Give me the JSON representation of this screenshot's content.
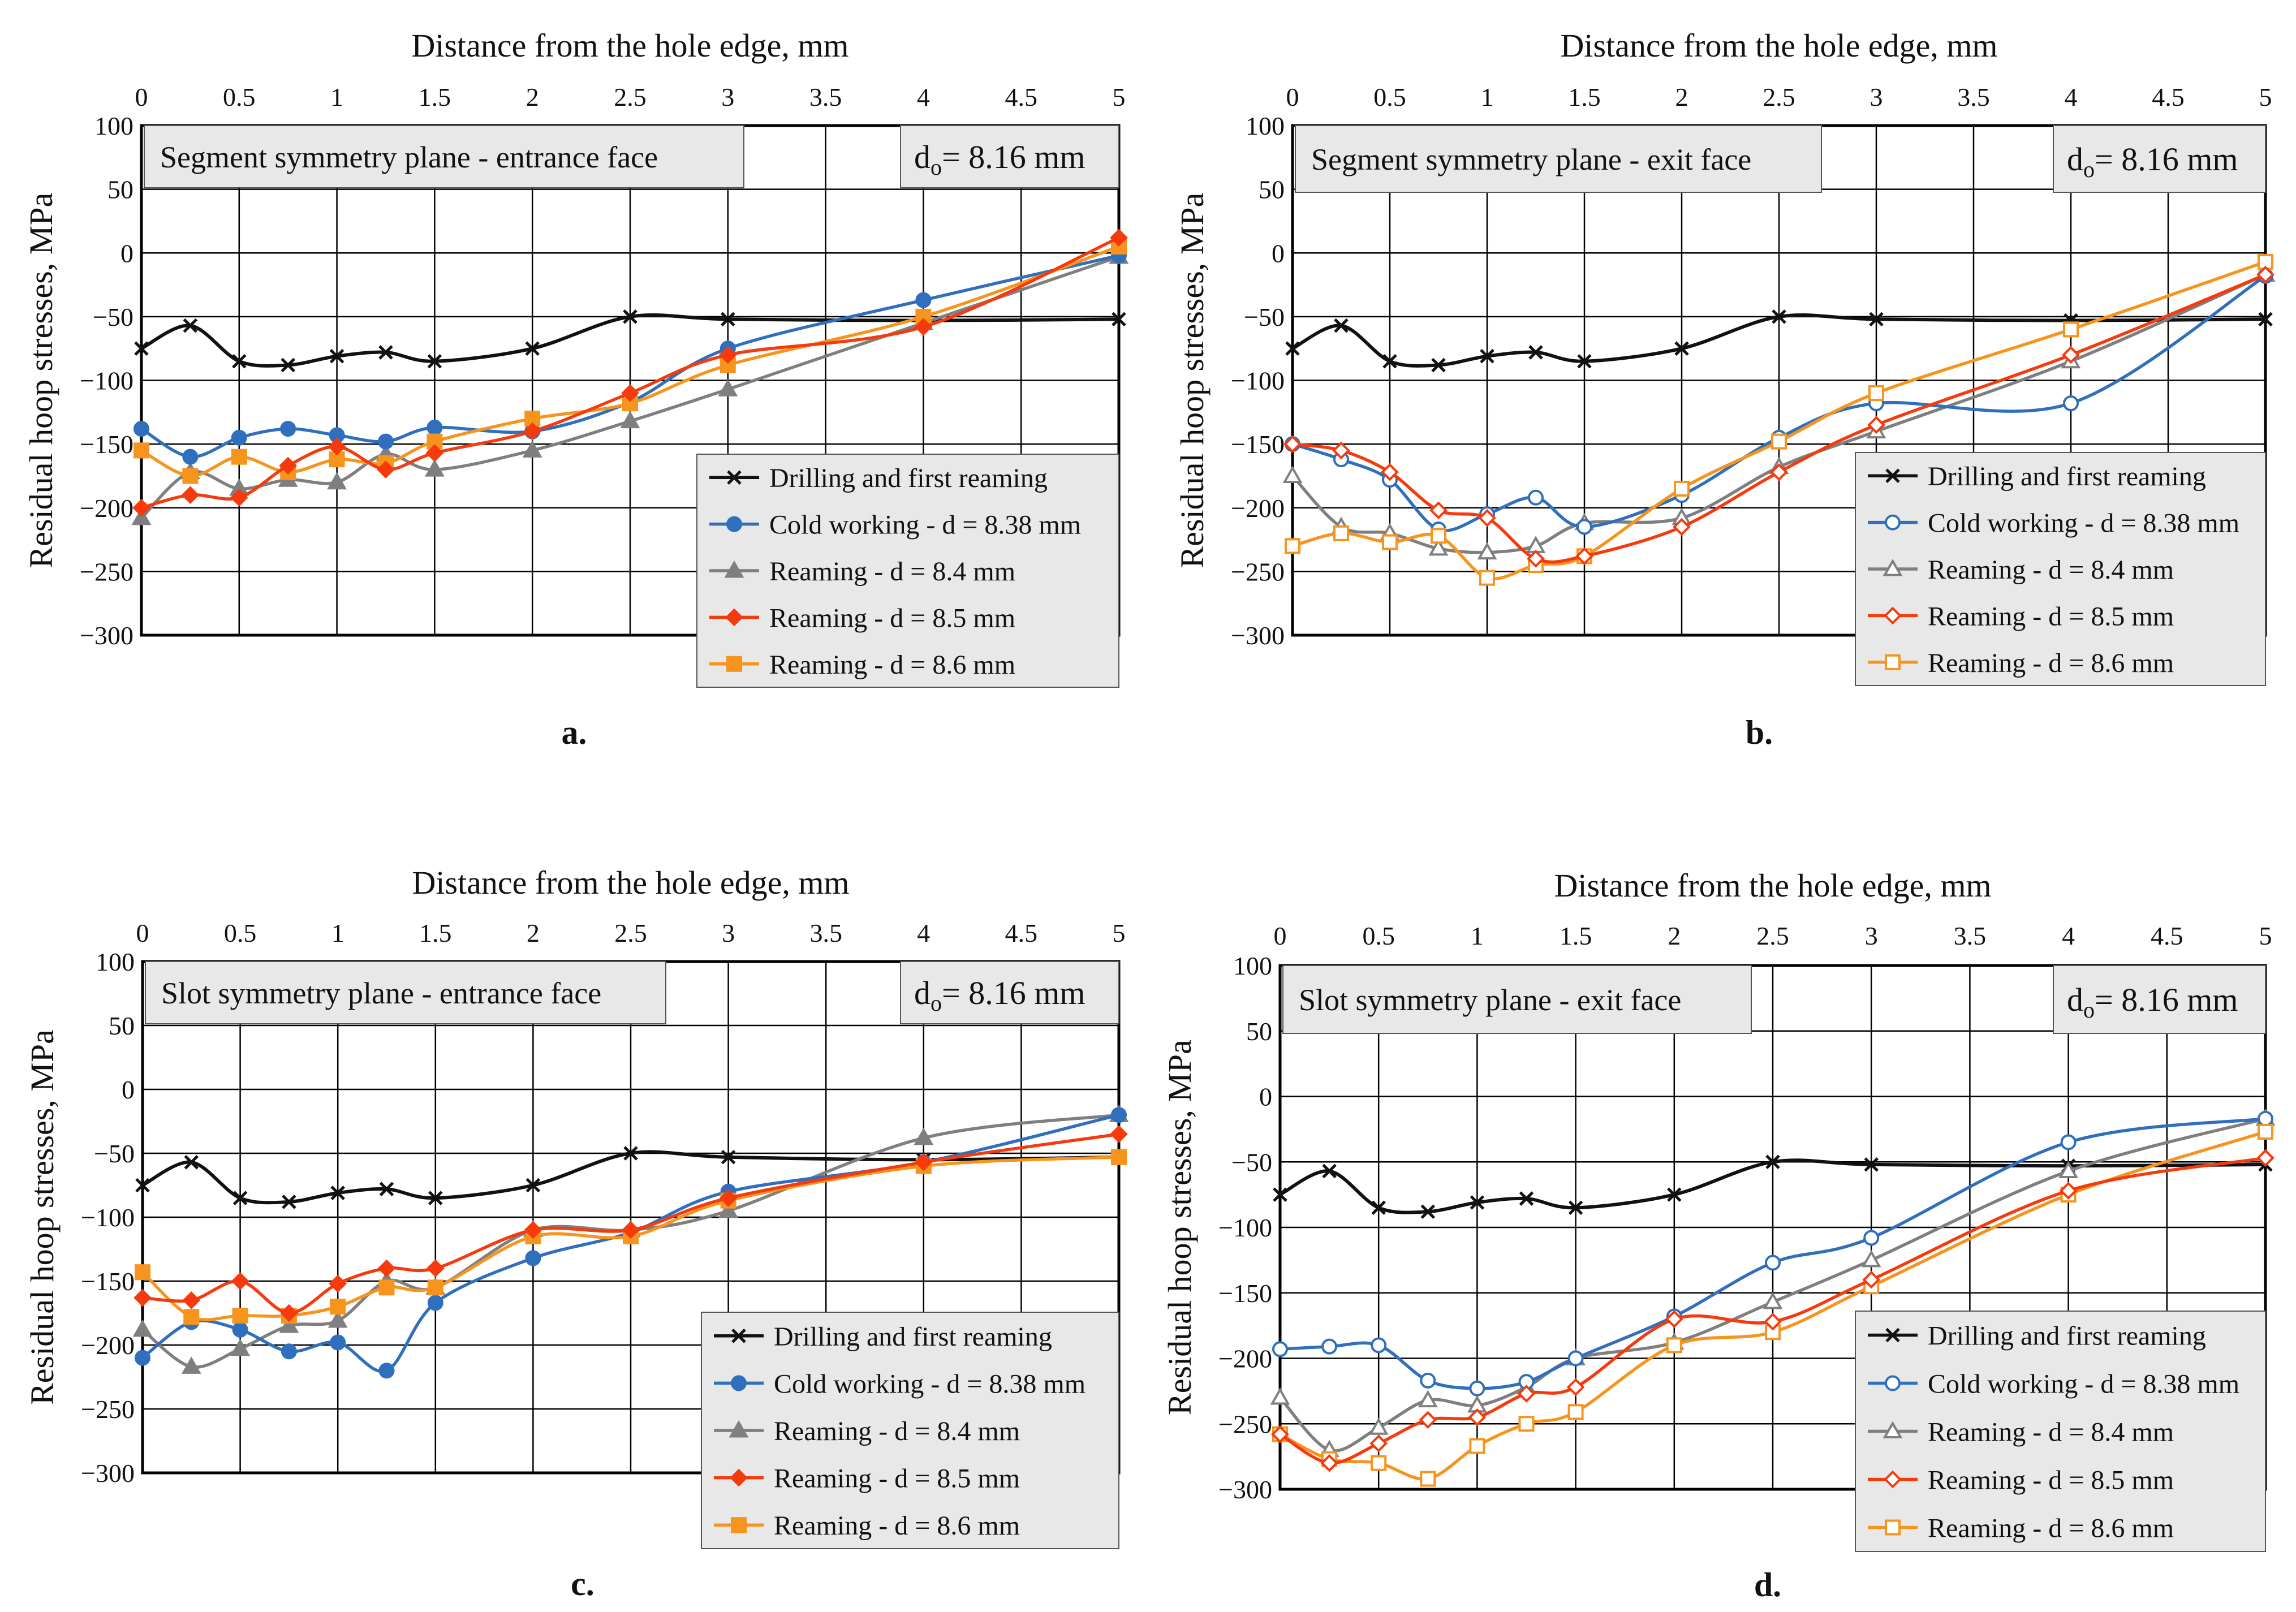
{
  "colors": {
    "drilling": "#111111",
    "cold_working": "#2f6fbd",
    "ream_84": "#7f7f7f",
    "ream_85": "#f53b0e",
    "ream_86": "#f7941d",
    "grid": "#000000",
    "label_bg": "#e8e8e8"
  },
  "chart_data": [
    {
      "id": "a",
      "type": "line",
      "panel_label": "a.",
      "title": "Segment symmetry plane - entrance face",
      "annotation": "d",
      "annotation_sub": "o",
      "annotation_value": "= 8.16 mm",
      "xlabel": "Distance from the hole edge, mm",
      "ylabel": "Residual hoop stresses, MPa",
      "xlim": [
        0,
        5
      ],
      "ylim": [
        -300,
        100
      ],
      "xticks": [
        "0",
        "0.5",
        "1",
        "1.5",
        "2",
        "2.5",
        "3",
        "3.5",
        "4",
        "4.5",
        "5"
      ],
      "yticks": [
        "100",
        "50",
        "0",
        "−50",
        "−100",
        "−150",
        "−200",
        "−250",
        "−300"
      ],
      "legend_position": "bottom-right",
      "series": [
        {
          "name": "Drilling and first reaming",
          "key": "drilling",
          "marker": "x",
          "fill": true,
          "x": [
            0,
            0.25,
            0.5,
            0.75,
            1,
            1.25,
            1.5,
            2,
            2.5,
            3,
            4,
            5
          ],
          "y": [
            -75,
            -57,
            -85,
            -88,
            -81,
            -78,
            -85,
            -75,
            -50,
            -52,
            -53,
            -52
          ]
        },
        {
          "name": "Cold working - d = 8.38 mm",
          "key": "cold_working",
          "marker": "circle",
          "fill": true,
          "x": [
            0,
            0.25,
            0.5,
            0.75,
            1,
            1.25,
            1.5,
            2,
            2.5,
            3,
            4,
            5
          ],
          "y": [
            -138,
            -160,
            -145,
            -138,
            -143,
            -148,
            -137,
            -140,
            -117,
            -75,
            -37,
            -2
          ]
        },
        {
          "name": "Reaming - d = 8.4 mm",
          "key": "ream_84",
          "marker": "triangle",
          "fill": true,
          "x": [
            0,
            0.25,
            0.5,
            0.75,
            1,
            1.25,
            1.5,
            2,
            2.5,
            3,
            4,
            5
          ],
          "y": [
            -208,
            -172,
            -185,
            -178,
            -180,
            -158,
            -170,
            -155,
            -132,
            -107,
            -55,
            -3
          ]
        },
        {
          "name": "Reaming - d = 8.5 mm",
          "key": "ream_85",
          "marker": "diamond",
          "fill": true,
          "x": [
            0,
            0.25,
            0.5,
            0.75,
            1,
            1.25,
            1.5,
            2,
            2.5,
            3,
            4,
            5
          ],
          "y": [
            -200,
            -190,
            -192,
            -167,
            -152,
            -170,
            -157,
            -140,
            -110,
            -80,
            -58,
            12
          ]
        },
        {
          "name": "Reaming - d = 8.6 mm",
          "key": "ream_86",
          "marker": "square",
          "fill": true,
          "x": [
            0,
            0.25,
            0.5,
            0.75,
            1,
            1.25,
            1.5,
            2,
            2.5,
            3,
            4,
            5
          ],
          "y": [
            -155,
            -175,
            -160,
            -172,
            -162,
            -165,
            -148,
            -130,
            -118,
            -88,
            -50,
            5
          ]
        }
      ]
    },
    {
      "id": "b",
      "type": "line",
      "panel_label": "b.",
      "title": "Segment symmetry plane - exit face",
      "annotation": "d",
      "annotation_sub": "o",
      "annotation_value": "= 8.16 mm",
      "xlabel": "Distance from the hole edge, mm",
      "ylabel": "Residual hoop stresses, MPa",
      "xlim": [
        0,
        5
      ],
      "ylim": [
        -300,
        100
      ],
      "xticks": [
        "0",
        "0.5",
        "1",
        "1.5",
        "2",
        "2.5",
        "3",
        "3.5",
        "4",
        "4.5",
        "5"
      ],
      "yticks": [
        "100",
        "50",
        "0",
        "−50",
        "−100",
        "−150",
        "−200",
        "−250",
        "−300"
      ],
      "legend_position": "bottom-right",
      "series": [
        {
          "name": "Drilling and first reaming",
          "key": "drilling",
          "marker": "x",
          "fill": true,
          "x": [
            0,
            0.25,
            0.5,
            0.75,
            1,
            1.25,
            1.5,
            2,
            2.5,
            3,
            4,
            5
          ],
          "y": [
            -75,
            -57,
            -85,
            -88,
            -81,
            -78,
            -85,
            -75,
            -50,
            -52,
            -53,
            -52
          ]
        },
        {
          "name": "Cold working - d = 8.38 mm",
          "key": "cold_working",
          "marker": "circle",
          "fill": false,
          "x": [
            0,
            0.25,
            0.5,
            0.75,
            1,
            1.25,
            1.5,
            2,
            2.5,
            3,
            4,
            5
          ],
          "y": [
            -150,
            -162,
            -178,
            -217,
            -205,
            -192,
            -215,
            -190,
            -145,
            -118,
            -118,
            -18
          ]
        },
        {
          "name": "Reaming - d = 8.4 mm",
          "key": "ream_84",
          "marker": "triangle",
          "fill": false,
          "x": [
            0,
            0.25,
            0.5,
            0.75,
            1,
            1.25,
            1.5,
            2,
            2.5,
            3,
            4,
            5
          ],
          "y": [
            -175,
            -215,
            -220,
            -232,
            -235,
            -230,
            -212,
            -208,
            -168,
            -140,
            -85,
            -17
          ]
        },
        {
          "name": "Reaming - d = 8.5 mm",
          "key": "ream_85",
          "marker": "diamond",
          "fill": false,
          "x": [
            0,
            0.25,
            0.5,
            0.75,
            1,
            1.25,
            1.5,
            2,
            2.5,
            3,
            4,
            5
          ],
          "y": [
            -150,
            -155,
            -172,
            -202,
            -208,
            -240,
            -238,
            -215,
            -172,
            -135,
            -80,
            -17
          ]
        },
        {
          "name": "Reaming - d = 8.6 mm",
          "key": "ream_86",
          "marker": "square",
          "fill": false,
          "x": [
            0,
            0.25,
            0.5,
            0.75,
            1,
            1.25,
            1.5,
            2,
            2.5,
            3,
            4,
            5
          ],
          "y": [
            -230,
            -220,
            -227,
            -222,
            -255,
            -245,
            -238,
            -185,
            -148,
            -110,
            -60,
            -7
          ]
        }
      ]
    },
    {
      "id": "c",
      "type": "line",
      "panel_label": "c.",
      "title": "Slot symmetry plane - entrance face",
      "annotation": "d",
      "annotation_sub": "o",
      "annotation_value": "= 8.16 mm",
      "xlabel": "Distance from the hole edge, mm",
      "ylabel": "Residual hoop stresses, MPa",
      "xlim": [
        0,
        5
      ],
      "ylim": [
        -300,
        100
      ],
      "xticks": [
        "0",
        "0.5",
        "1",
        "1.5",
        "2",
        "2.5",
        "3",
        "3.5",
        "4",
        "4.5",
        "5"
      ],
      "yticks": [
        "100",
        "50",
        "0",
        "−50",
        "−100",
        "−150",
        "−200",
        "−250",
        "−300"
      ],
      "legend_position": "bottom-right",
      "series": [
        {
          "name": "Drilling and first reaming",
          "key": "drilling",
          "marker": "x",
          "fill": true,
          "x": [
            0,
            0.25,
            0.5,
            0.75,
            1,
            1.25,
            1.5,
            2,
            2.5,
            3,
            4,
            5
          ],
          "y": [
            -75,
            -57,
            -85,
            -88,
            -81,
            -78,
            -85,
            -75,
            -50,
            -53,
            -55,
            -53
          ]
        },
        {
          "name": "Cold working - d = 8.38 mm",
          "key": "cold_working",
          "marker": "circle",
          "fill": true,
          "x": [
            0,
            0.25,
            0.5,
            0.75,
            1,
            1.25,
            1.5,
            2,
            2.5,
            3,
            4,
            5
          ],
          "y": [
            -210,
            -182,
            -188,
            -205,
            -198,
            -220,
            -167,
            -132,
            -112,
            -80,
            -57,
            -20
          ]
        },
        {
          "name": "Reaming - d = 8.4 mm",
          "key": "ream_84",
          "marker": "triangle",
          "fill": true,
          "x": [
            0,
            0.25,
            0.5,
            0.75,
            1,
            1.25,
            1.5,
            2,
            2.5,
            3,
            4,
            5
          ],
          "y": [
            -188,
            -217,
            -203,
            -185,
            -181,
            -150,
            -155,
            -110,
            -110,
            -95,
            -38,
            -20
          ]
        },
        {
          "name": "Reaming - d = 8.5 mm",
          "key": "ream_85",
          "marker": "diamond",
          "fill": true,
          "x": [
            0,
            0.25,
            0.5,
            0.75,
            1,
            1.25,
            1.5,
            2,
            2.5,
            3,
            4,
            5
          ],
          "y": [
            -163,
            -165,
            -150,
            -175,
            -152,
            -140,
            -140,
            -110,
            -110,
            -85,
            -57,
            -35
          ]
        },
        {
          "name": "Reaming - d = 8.6 mm",
          "key": "ream_86",
          "marker": "square",
          "fill": true,
          "x": [
            0,
            0.25,
            0.5,
            0.75,
            1,
            1.25,
            1.5,
            2,
            2.5,
            3,
            4,
            5
          ],
          "y": [
            -143,
            -178,
            -177,
            -177,
            -170,
            -155,
            -155,
            -115,
            -115,
            -87,
            -60,
            -53
          ]
        }
      ]
    },
    {
      "id": "d",
      "type": "line",
      "panel_label": "d.",
      "title": "Slot symmetry plane - exit face",
      "annotation": "d",
      "annotation_sub": "o",
      "annotation_value": "= 8.16 mm",
      "xlabel": "Distance from the hole edge, mm",
      "ylabel": "Residual hoop stresses, MPa",
      "xlim": [
        0,
        5
      ],
      "ylim": [
        -300,
        100
      ],
      "xticks": [
        "0",
        "0.5",
        "1",
        "1.5",
        "2",
        "2.5",
        "3",
        "3.5",
        "4",
        "4.5",
        "5"
      ],
      "yticks": [
        "100",
        "50",
        "0",
        "−50",
        "−100",
        "−150",
        "−200",
        "−250",
        "−300"
      ],
      "legend_position": "bottom-right",
      "series": [
        {
          "name": "Drilling and first reaming",
          "key": "drilling",
          "marker": "x",
          "fill": true,
          "x": [
            0,
            0.25,
            0.5,
            0.75,
            1,
            1.25,
            1.5,
            2,
            2.5,
            3,
            4,
            5
          ],
          "y": [
            -75,
            -57,
            -85,
            -88,
            -81,
            -78,
            -85,
            -75,
            -50,
            -52,
            -53,
            -52
          ]
        },
        {
          "name": "Cold working - d = 8.38 mm",
          "key": "cold_working",
          "marker": "circle",
          "fill": false,
          "x": [
            0,
            0.25,
            0.5,
            0.75,
            1,
            1.25,
            1.5,
            2,
            2.5,
            3,
            4,
            5
          ],
          "y": [
            -193,
            -191,
            -190,
            -217,
            -223,
            -218,
            -200,
            -168,
            -127,
            -108,
            -35,
            -17
          ]
        },
        {
          "name": "Reaming - d = 8.4 mm",
          "key": "ream_84",
          "marker": "triangle",
          "fill": false,
          "x": [
            0,
            0.25,
            0.5,
            0.75,
            1,
            1.25,
            1.5,
            2,
            2.5,
            3,
            4,
            5
          ],
          "y": [
            -230,
            -270,
            -253,
            -232,
            -236,
            -222,
            -200,
            -188,
            -157,
            -125,
            -57,
            -17
          ]
        },
        {
          "name": "Reaming - d = 8.5 mm",
          "key": "ream_85",
          "marker": "diamond",
          "fill": false,
          "x": [
            0,
            0.25,
            0.5,
            0.75,
            1,
            1.25,
            1.5,
            2,
            2.5,
            3,
            4,
            5
          ],
          "y": [
            -258,
            -280,
            -265,
            -247,
            -245,
            -227,
            -222,
            -170,
            -172,
            -140,
            -72,
            -47
          ]
        },
        {
          "name": "Reaming - d = 8.6 mm",
          "key": "ream_86",
          "marker": "square",
          "fill": false,
          "x": [
            0,
            0.25,
            0.5,
            0.75,
            1,
            1.25,
            1.5,
            2,
            2.5,
            3,
            4,
            5
          ],
          "y": [
            -258,
            -277,
            -280,
            -292,
            -267,
            -250,
            -241,
            -190,
            -180,
            -145,
            -75,
            -27
          ]
        }
      ]
    }
  ]
}
